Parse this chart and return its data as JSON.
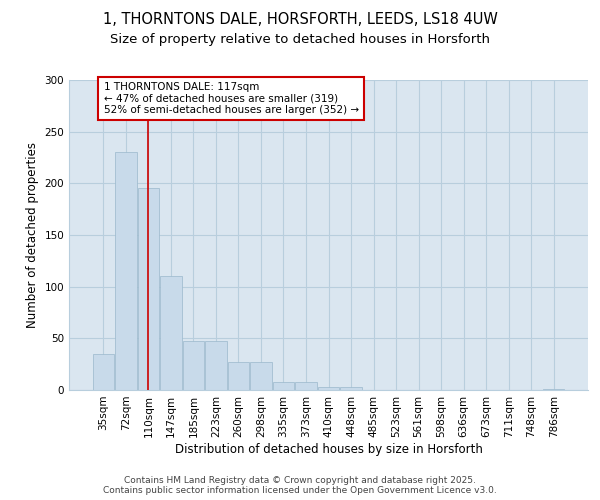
{
  "title_line1": "1, THORNTONS DALE, HORSFORTH, LEEDS, LS18 4UW",
  "title_line2": "Size of property relative to detached houses in Horsforth",
  "xlabel": "Distribution of detached houses by size in Horsforth",
  "ylabel": "Number of detached properties",
  "bar_color": "#c8daea",
  "bar_edge_color": "#9ab8cc",
  "grid_color": "#b8cedd",
  "background_color": "#dae6f0",
  "categories": [
    "35sqm",
    "72sqm",
    "110sqm",
    "147sqm",
    "185sqm",
    "223sqm",
    "260sqm",
    "298sqm",
    "335sqm",
    "373sqm",
    "410sqm",
    "448sqm",
    "485sqm",
    "523sqm",
    "561sqm",
    "598sqm",
    "636sqm",
    "673sqm",
    "711sqm",
    "748sqm",
    "786sqm"
  ],
  "values": [
    35,
    230,
    195,
    110,
    47,
    47,
    27,
    27,
    8,
    8,
    3,
    3,
    0,
    0,
    0,
    0,
    0,
    0,
    0,
    0,
    1
  ],
  "property_line_x": 2.0,
  "annotation_text": "1 THORNTONS DALE: 117sqm\n← 47% of detached houses are smaller (319)\n52% of semi-detached houses are larger (352) →",
  "annotation_box_color": "#ffffff",
  "annotation_box_edge_color": "#cc0000",
  "vline_color": "#cc0000",
  "footer_text": "Contains HM Land Registry data © Crown copyright and database right 2025.\nContains public sector information licensed under the Open Government Licence v3.0.",
  "ylim": [
    0,
    300
  ],
  "yticks": [
    0,
    50,
    100,
    150,
    200,
    250,
    300
  ],
  "title_fontsize": 10.5,
  "subtitle_fontsize": 9.5,
  "axis_label_fontsize": 8.5,
  "tick_fontsize": 7.5,
  "annotation_fontsize": 7.5,
  "footer_fontsize": 6.5
}
